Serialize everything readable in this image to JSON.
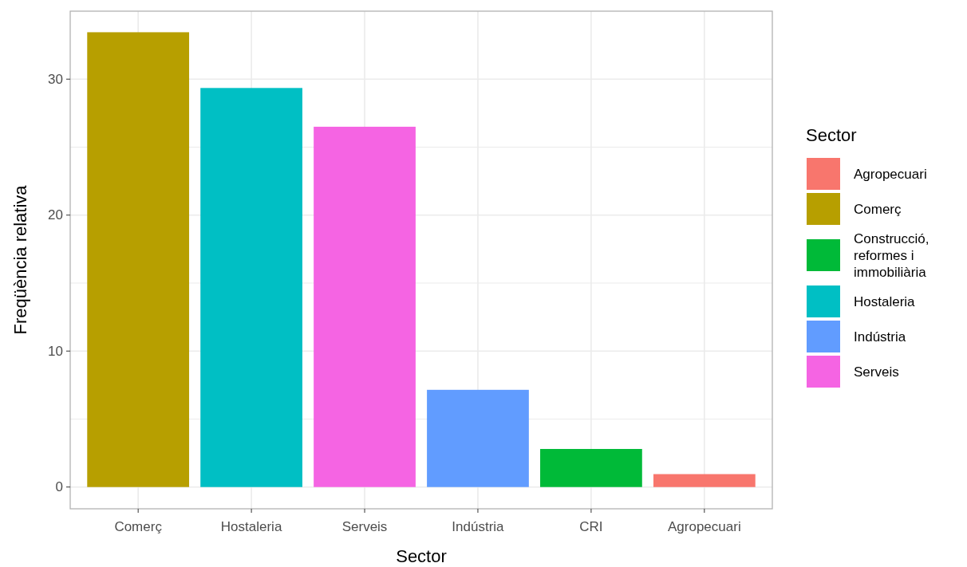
{
  "chart_data": {
    "type": "bar",
    "xlabel": "Sector",
    "ylabel": "Freqüència relativa",
    "legend_title": "Sector",
    "categories": [
      "Comerç",
      "Hostaleria",
      "Serveis",
      "Indústria",
      "CRI",
      "Agropecuari"
    ],
    "series": [
      {
        "name": "Agropecuari",
        "color": "#f8766d",
        "values": [
          null,
          null,
          null,
          null,
          null,
          0.95
        ]
      },
      {
        "name": "Comerç",
        "color": "#b79f00",
        "values": [
          33.45,
          null,
          null,
          null,
          null,
          null
        ]
      },
      {
        "name": "Construcció, reformes i immobiliària",
        "color": "#00ba38",
        "values": [
          null,
          null,
          null,
          null,
          2.8,
          null
        ]
      },
      {
        "name": "Hostaleria",
        "color": "#00bfc4",
        "values": [
          null,
          29.35,
          null,
          null,
          null,
          null
        ]
      },
      {
        "name": "Indústria",
        "color": "#619cff",
        "values": [
          null,
          null,
          null,
          7.15,
          null,
          null
        ]
      },
      {
        "name": "Serveis",
        "color": "#f564e3",
        "values": [
          null,
          null,
          26.5,
          null,
          null,
          null
        ]
      }
    ],
    "ylim": [
      -1.6,
      35
    ],
    "yticks": [
      0,
      {
        "value": 5,
        "label": null
      },
      10,
      {
        "value": 15,
        "label": null
      },
      20,
      {
        "value": 25,
        "label": null
      },
      30
    ],
    "grid": true,
    "legend": "right"
  }
}
